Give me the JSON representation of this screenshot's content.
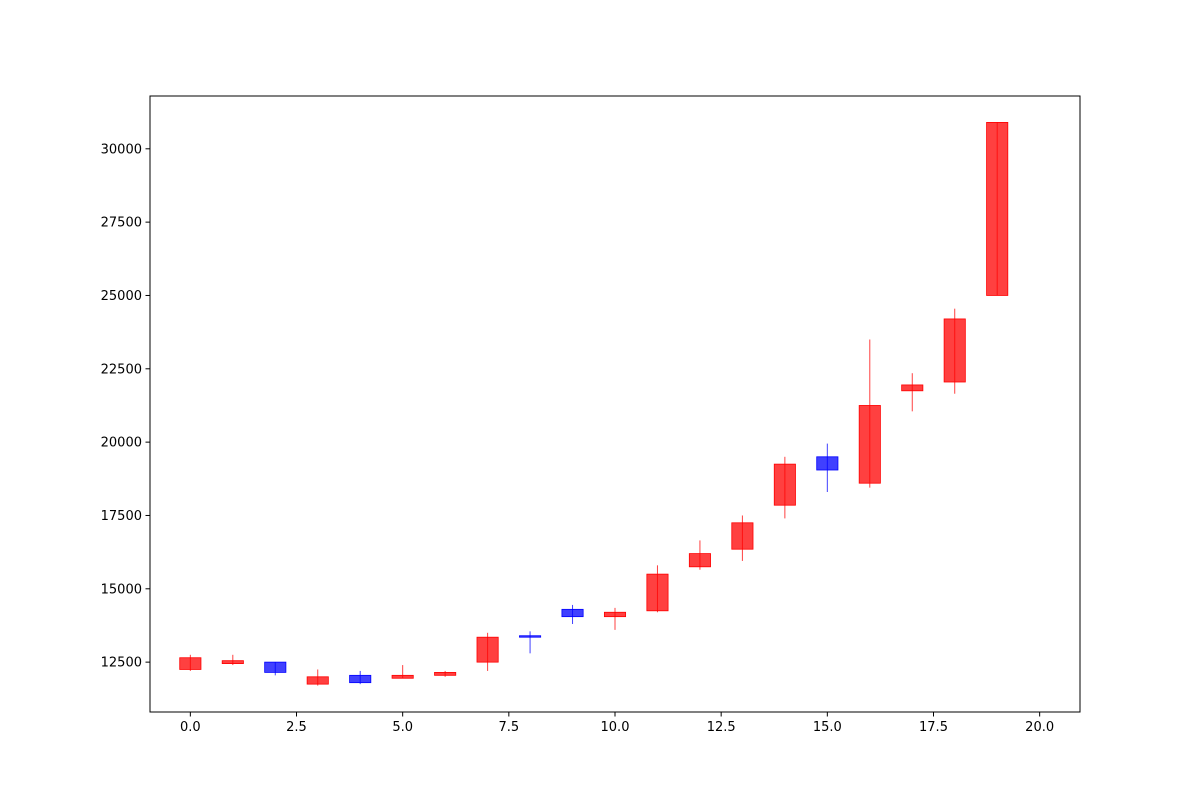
{
  "chart_data": {
    "type": "candlestick",
    "xlim": [
      -0.95,
      20.95
    ],
    "ylim": [
      10800,
      31800
    ],
    "x_ticks": [
      0,
      2.5,
      5,
      7.5,
      10,
      12.5,
      15,
      17.5,
      20
    ],
    "x_tick_labels": [
      "0.0",
      "2.5",
      "5.0",
      "7.5",
      "10.0",
      "12.5",
      "15.0",
      "17.5",
      "20.0"
    ],
    "y_ticks": [
      12500,
      15000,
      17500,
      20000,
      22500,
      25000,
      27500,
      30000
    ],
    "y_tick_labels": [
      "12500",
      "15000",
      "17500",
      "20000",
      "22500",
      "25000",
      "27500",
      "30000"
    ],
    "up_color": "#ff0000",
    "down_color": "#0000ff",
    "candles": [
      {
        "x": 0,
        "open": 12250,
        "close": 12650,
        "high": 12750,
        "low": 12200
      },
      {
        "x": 1,
        "open": 12450,
        "close": 12550,
        "high": 12750,
        "low": 12400
      },
      {
        "x": 2,
        "open": 12500,
        "close": 12150,
        "high": 12500,
        "low": 12050
      },
      {
        "x": 3,
        "open": 11750,
        "close": 12000,
        "high": 12250,
        "low": 11700
      },
      {
        "x": 4,
        "open": 12050,
        "close": 11800,
        "high": 12200,
        "low": 11750
      },
      {
        "x": 5,
        "open": 11950,
        "close": 12050,
        "high": 12400,
        "low": 11950
      },
      {
        "x": 6,
        "open": 12050,
        "close": 12150,
        "high": 12200,
        "low": 12000
      },
      {
        "x": 7,
        "open": 12500,
        "close": 13350,
        "high": 13500,
        "low": 12200
      },
      {
        "x": 8,
        "open": 13400,
        "close": 13350,
        "high": 13550,
        "low": 12800
      },
      {
        "x": 9,
        "open": 14300,
        "close": 14050,
        "high": 14450,
        "low": 13800
      },
      {
        "x": 10,
        "open": 14050,
        "close": 14200,
        "high": 14350,
        "low": 13600
      },
      {
        "x": 11,
        "open": 14250,
        "close": 15500,
        "high": 15800,
        "low": 14200
      },
      {
        "x": 12,
        "open": 15750,
        "close": 16200,
        "high": 16650,
        "low": 15650
      },
      {
        "x": 13,
        "open": 16350,
        "close": 17250,
        "high": 17500,
        "low": 15950
      },
      {
        "x": 14,
        "open": 17850,
        "close": 19250,
        "high": 19500,
        "low": 17400
      },
      {
        "x": 15,
        "open": 19500,
        "close": 19050,
        "high": 19950,
        "low": 18300
      },
      {
        "x": 16,
        "open": 18600,
        "close": 21250,
        "high": 23500,
        "low": 18450
      },
      {
        "x": 17,
        "open": 21750,
        "close": 21950,
        "high": 22350,
        "low": 21050
      },
      {
        "x": 18,
        "open": 22050,
        "close": 24200,
        "high": 24550,
        "low": 21650
      },
      {
        "x": 19,
        "open": 25000,
        "close": 30900,
        "high": 30900,
        "low": 25000
      }
    ]
  }
}
